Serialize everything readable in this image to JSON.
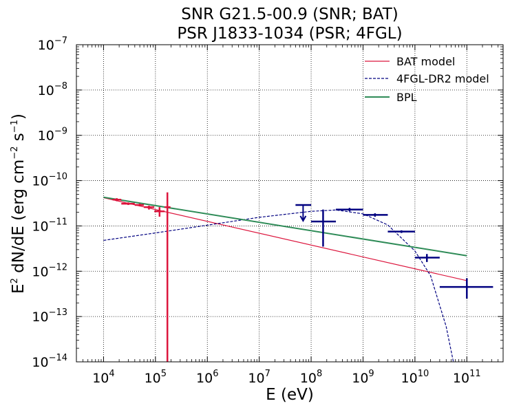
{
  "chart_data": {
    "type": "scatter",
    "title_lines": [
      "SNR G21.5-00.9 (SNR; BAT)",
      "PSR J1833-1034 (PSR; 4FGL)"
    ],
    "xlabel": "E (eV)",
    "ylabel": {
      "base": "E",
      "exp1": "2",
      "mid": " dN/dE (erg cm",
      "exp2": "−2",
      "mid2": " s",
      "exp3": "−1",
      "end": ")"
    },
    "xscale": "log",
    "yscale": "log",
    "xlim": [
      3000,
      500000000000
    ],
    "ylim": [
      1e-14,
      1e-07
    ],
    "grid": true,
    "legend_position": "top-right",
    "x_ticks": [
      {
        "value": 10000,
        "base": "10",
        "exp": "4"
      },
      {
        "value": 100000,
        "base": "10",
        "exp": "5"
      },
      {
        "value": 1000000,
        "base": "10",
        "exp": "6"
      },
      {
        "value": 10000000,
        "base": "10",
        "exp": "7"
      },
      {
        "value": 100000000,
        "base": "10",
        "exp": "8"
      },
      {
        "value": 1000000000,
        "base": "10",
        "exp": "9"
      },
      {
        "value": 10000000000,
        "base": "10",
        "exp": "10"
      },
      {
        "value": 100000000000,
        "base": "10",
        "exp": "11"
      }
    ],
    "y_ticks": [
      {
        "value": 1e-14,
        "base": "10",
        "exp": "−14"
      },
      {
        "value": 1e-13,
        "base": "10",
        "exp": "−13"
      },
      {
        "value": 1e-12,
        "base": "10",
        "exp": "−12"
      },
      {
        "value": 1e-11,
        "base": "10",
        "exp": "−11"
      },
      {
        "value": 1e-10,
        "base": "10",
        "exp": "−10"
      },
      {
        "value": 1e-09,
        "base": "10",
        "exp": "−9"
      },
      {
        "value": 1e-08,
        "base": "10",
        "exp": "−8"
      },
      {
        "value": 1e-07,
        "base": "10",
        "exp": "−7"
      }
    ],
    "series": [
      {
        "name": "BAT model",
        "kind": "line",
        "color": "#dc143c",
        "style": "solid",
        "points": [
          [
            10000,
            4.2e-11
          ],
          [
            100000000000,
            6.2e-13
          ]
        ]
      },
      {
        "name": "4FGL-DR2 model",
        "kind": "line",
        "color": "#000080",
        "style": "dashed",
        "points": [
          [
            10000,
            4.8e-12
          ],
          [
            100000,
            7e-12
          ],
          [
            1000000,
            1.04e-11
          ],
          [
            10000000,
            1.55e-11
          ],
          [
            100000000,
            2.1e-11
          ],
          [
            300000000,
            2.25e-11
          ],
          [
            1000000000,
            1.85e-11
          ],
          [
            3000000000,
            1.05e-11
          ],
          [
            10000000000,
            2.8e-12
          ],
          [
            20000000000,
            8e-13
          ],
          [
            40000000000,
            6e-14
          ],
          [
            55000000000,
            1e-14
          ]
        ]
      },
      {
        "name": "BPL",
        "kind": "line",
        "color": "#2e8b57",
        "style": "solid",
        "points": [
          [
            10000,
            4.3e-11
          ],
          [
            100000000000,
            2.2e-12
          ]
        ]
      }
    ],
    "bat_points": {
      "color": "#dc143c",
      "points": [
        {
          "x": 18000,
          "xlo": 15000,
          "xhi": 22000,
          "y": 3.8e-11,
          "ylo": 3.5e-11,
          "yhi": 4.1e-11
        },
        {
          "x": 30000,
          "xlo": 22000,
          "xhi": 40000,
          "y": 3.1e-11,
          "ylo": 2.9e-11,
          "yhi": 3.3e-11
        },
        {
          "x": 50000,
          "xlo": 40000,
          "xhi": 60000,
          "y": 2.9e-11,
          "ylo": 2.7e-11,
          "yhi": 3.1e-11
        },
        {
          "x": 75000,
          "xlo": 60000,
          "xhi": 95000,
          "y": 2.6e-11,
          "ylo": 2.3e-11,
          "yhi": 2.8e-11
        },
        {
          "x": 120000,
          "xlo": 95000,
          "xhi": 150000,
          "y": 2.1e-11,
          "ylo": 1.6e-11,
          "yhi": 2.6e-11
        },
        {
          "x": 170000,
          "xlo": 150000,
          "xhi": 195000,
          "y": 2.6e-11,
          "ylo": 1e-14,
          "yhi": 5.5e-11
        }
      ]
    },
    "fermi_points": {
      "color": "#000080",
      "points": [
        {
          "x": 70000000,
          "xlo": 50000000,
          "xhi": 100000000,
          "y": 2.9e-11,
          "upper_limit": true,
          "ul_end": 1.3e-11
        },
        {
          "x": 170000000,
          "xlo": 100000000,
          "xhi": 300000000,
          "y": 1.25e-11,
          "ylo": 3.5e-12,
          "yhi": 2.3e-11
        },
        {
          "x": 550000000,
          "xlo": 300000000,
          "xhi": 1000000000,
          "y": 2.3e-11,
          "ylo": 2.1e-11,
          "yhi": 2.5e-11
        },
        {
          "x": 1700000000,
          "xlo": 1000000000,
          "xhi": 3000000000,
          "y": 1.75e-11,
          "ylo": 1.6e-11,
          "yhi": 1.9e-11
        },
        {
          "x": 5500000000,
          "xlo": 3000000000,
          "xhi": 10000000000,
          "y": 7.5e-12,
          "ylo": 7e-12,
          "yhi": 8e-12
        },
        {
          "x": 17000000000,
          "xlo": 10000000000,
          "xhi": 30000000000,
          "y": 2e-12,
          "ylo": 1.6e-12,
          "yhi": 2.4e-12
        },
        {
          "x": 100000000000,
          "xlo": 30000000000,
          "xhi": 320000000000,
          "y": 4.5e-13,
          "ylo": 2.5e-13,
          "yhi": 7e-13
        }
      ]
    }
  }
}
